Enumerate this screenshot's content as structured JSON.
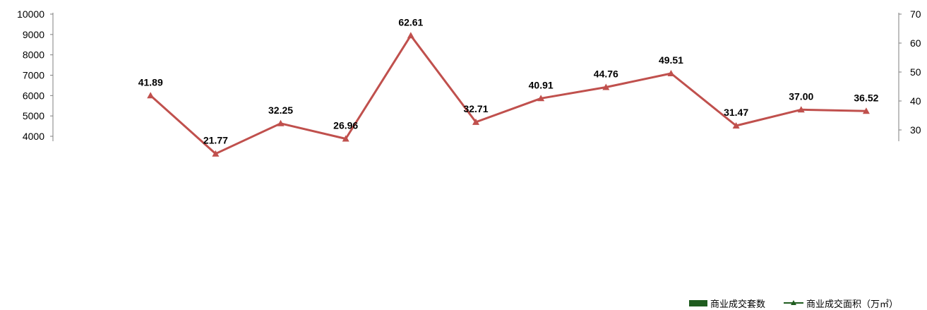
{
  "chart_data": {
    "type": "bar",
    "left_axis": {
      "ticks": [
        4000,
        5000,
        6000,
        7000,
        8000,
        9000,
        10000
      ]
    },
    "right_axis": {
      "ticks": [
        30,
        40,
        50,
        60,
        70
      ]
    },
    "series": [
      {
        "name": "商业成交套数",
        "type": "bar",
        "color": "#95b3d7"
      },
      {
        "name": "商业成交面积（万㎡）",
        "type": "line",
        "color": "#c0504d",
        "values": [
          null,
          41.89,
          21.77,
          32.25,
          26.96,
          62.61,
          32.71,
          40.91,
          44.76,
          49.51,
          31.47,
          37.0,
          36.52
        ],
        "labels": [
          "",
          "41.89",
          "21.77",
          "32.25",
          "26.96",
          "62.61",
          "32.71",
          "40.91",
          "44.76",
          "49.51",
          "31.47",
          "37.00",
          "36.52"
        ]
      }
    ],
    "grid": false,
    "legend_position": "bottom-right"
  },
  "legend": {
    "bar_label": "商业成交套数",
    "line_label": "商业成交面积（万㎡）",
    "bar_color": "#1f5c1f",
    "line_color": "#1f5c1f"
  }
}
